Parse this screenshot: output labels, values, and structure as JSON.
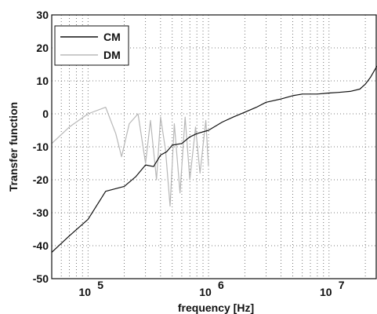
{
  "chart_data": {
    "type": "line",
    "xlabel": "frequency [Hz]",
    "ylabel": "Transfer function",
    "xscale": "log",
    "xlim": [
      50000,
      25000000
    ],
    "ylim": [
      -50,
      30
    ],
    "yticks": [
      30,
      20,
      10,
      0,
      -10,
      -20,
      -30,
      -40,
      -50
    ],
    "xticks": [
      {
        "value": 100000,
        "base": "10",
        "exp": "5"
      },
      {
        "value": 1000000,
        "base": "10",
        "exp": "6"
      },
      {
        "value": 10000000,
        "base": "10",
        "exp": "7"
      }
    ],
    "grid": "dotted",
    "legend": {
      "placement": "top-left",
      "entries": [
        "CM",
        "DM"
      ]
    },
    "series": [
      {
        "name": "CM",
        "color": "#111111",
        "x": [
          50000,
          70000,
          100000,
          140000,
          200000,
          250000,
          300000,
          350000,
          400000,
          450000,
          500000,
          600000,
          700000,
          800000,
          1000000,
          1300000,
          1600000,
          2000000,
          2500000,
          3000000,
          4000000,
          5000000,
          6000000,
          8000000,
          10000000,
          12000000,
          15000000,
          18000000,
          20000000,
          22000000,
          25000000
        ],
        "y": [
          -42,
          -37,
          -32,
          -23.5,
          -22,
          -19,
          -15.5,
          -16,
          -12.5,
          -11.5,
          -9.5,
          -9,
          -7,
          -6,
          -5,
          -2.5,
          -1,
          0.5,
          2,
          3.5,
          4.5,
          5.5,
          6,
          6,
          6.3,
          6.5,
          6.8,
          7.5,
          9,
          11,
          14.5
        ]
      },
      {
        "name": "DM",
        "color": "#b8b8b8",
        "x": [
          50000,
          70000,
          100000,
          140000,
          170000,
          190000,
          220000,
          260000,
          300000,
          330000,
          370000,
          400000,
          440000,
          480000,
          520000,
          580000,
          640000,
          700000,
          780000,
          850000,
          950000,
          1000000
        ],
        "y": [
          -9,
          -4,
          0,
          2,
          -6,
          -13,
          -3,
          0,
          -15,
          -2,
          -20,
          -1,
          -11,
          -28,
          -3,
          -24,
          -1,
          -20,
          -4,
          -18,
          -2,
          -16
        ]
      }
    ]
  }
}
